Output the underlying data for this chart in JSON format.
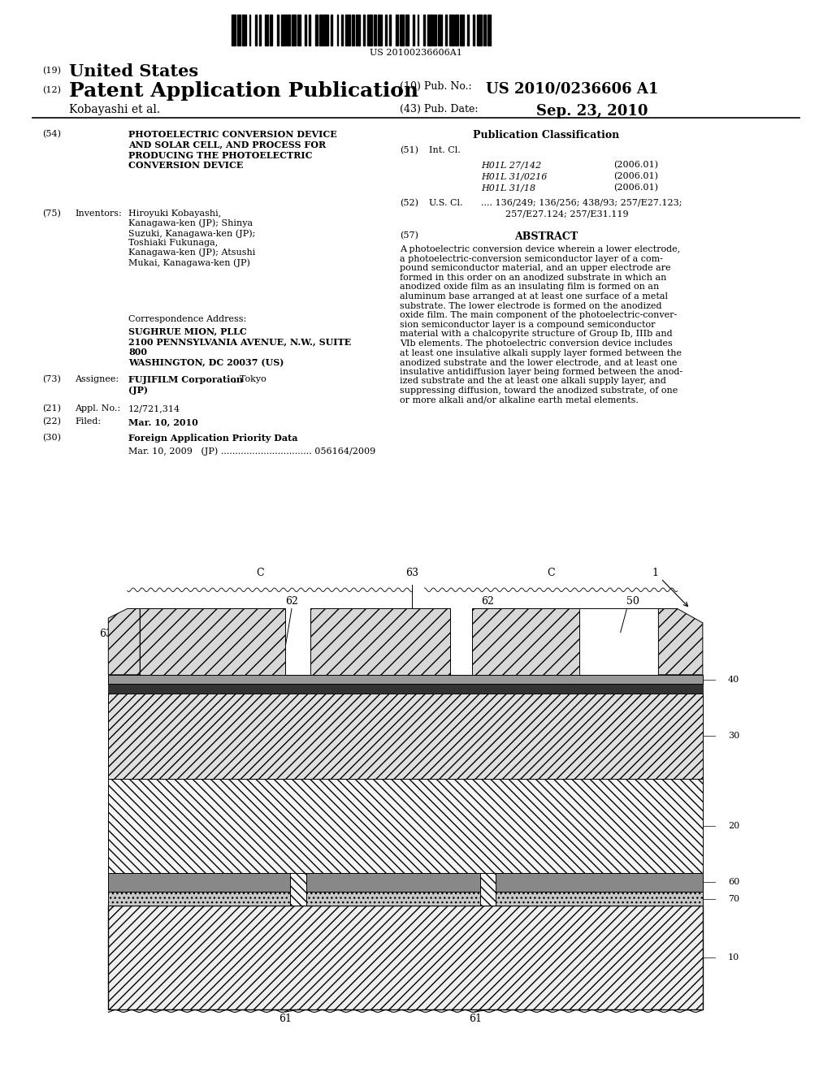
{
  "barcode_text": "US 20100236606A1",
  "title_19_text": "United States",
  "title_12_text": "Patent Application Publication",
  "pub_no_label": "(10) Pub. No.:",
  "pub_no_value": "US 2010/0236606 A1",
  "inventor_line": "Kobayashi et al.",
  "pub_date_label": "(43) Pub. Date:",
  "pub_date_value": "Sep. 23, 2010",
  "field54_text": "PHOTOELECTRIC CONVERSION DEVICE\nAND SOLAR CELL, AND PROCESS FOR\nPRODUCING THE PHOTOELECTRIC\nCONVERSION DEVICE",
  "field75_text": "Hiroyuki Kobayashi,\nKanagawa-ken (JP); Shinya\nSuzuki, Kanagawa-ken (JP);\nToshiaki Fukunaga,\nKanagawa-ken (JP); Atsushi\nMukai, Kanagawa-ken (JP)",
  "corr_title": "Correspondence Address:",
  "corr_text": "SUGHRUE MION, PLLC\n2100 PENNSYLVANIA AVENUE, N.W., SUITE\n800\nWASHINGTON, DC 20037 (US)",
  "field73_text": "FUJIFILM Corporation, Tokyo\n(JP)",
  "field21_text": "12/721,314",
  "field22_text": "Mar. 10, 2010",
  "field30_title": "Foreign Application Priority Data",
  "field30_text": "Mar. 10, 2009   (JP) ................................ 056164/2009",
  "pub_class_title": "Publication Classification",
  "field51_entries": [
    [
      "H01L 27/142",
      "(2006.01)"
    ],
    [
      "H01L 31/0216",
      "(2006.01)"
    ],
    [
      "H01L 31/18",
      "(2006.01)"
    ]
  ],
  "field52_text": ".... 136/249; 136/256; 438/93; 257/E27.123;\n                257/E27.124; 257/E31.119",
  "abstract_text": "A photoelectric conversion device wherein a lower electrode,\na photoelectric-conversion semiconductor layer of a com-\npound semiconductor material, and an upper electrode are\nformed in this order on an anodized substrate in which an\nanodized oxide film as an insulating film is formed on an\naluminum base arranged at at least one surface of a metal\nsubstrate. The lower electrode is formed on the anodized\noxide film. The main component of the photoelectric-conver-\nsion semiconductor layer is a compound semiconductor\nmaterial with a chalcopyrite structure of Group Ib, IIIb and\nVIb elements. The photoelectric conversion device includes\nat least one insulative alkali supply layer formed between the\nanodized substrate and the lower electrode, and at least one\ninsulative antidiffusion layer being formed between the anod-\nized substrate and the at least one alkali supply layer, and\nsuppressing diffusion, toward the anodized substrate, of one\nor more alkali and/or alkaline earth metal elements.",
  "bg_color": "#ffffff"
}
